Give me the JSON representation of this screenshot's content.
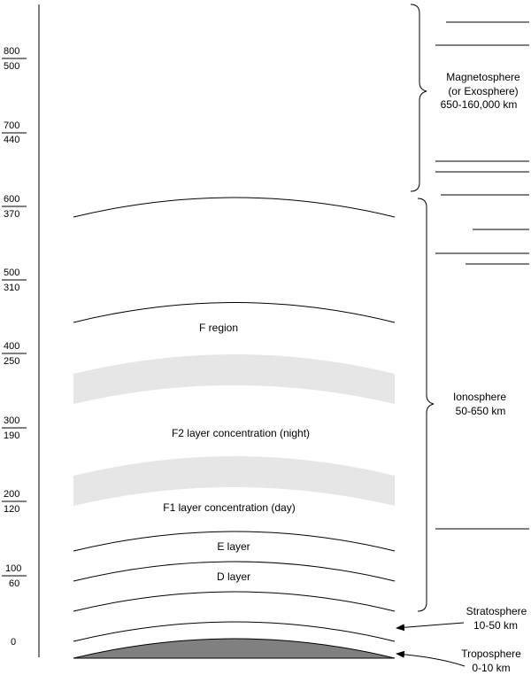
{
  "colors": {
    "line": "#000000",
    "band": "#e6e6e6",
    "troposphere_fill": "#808080"
  },
  "axis_ticks": [
    {
      "top": "800",
      "bottom": "500"
    },
    {
      "top": "700",
      "bottom": "440"
    },
    {
      "top": "600",
      "bottom": "370"
    },
    {
      "top": "500",
      "bottom": "310"
    },
    {
      "top": "400",
      "bottom": "250"
    },
    {
      "top": "300",
      "bottom": "190"
    },
    {
      "top": "200",
      "bottom": "120"
    },
    {
      "top": "100",
      "bottom": "60"
    },
    {
      "top": "0",
      "bottom": ""
    }
  ],
  "region_labels": {
    "f_region": "F region",
    "f2": "F2  layer concentration (night)",
    "f1": "F1  layer concentration (day)",
    "e_layer": "E layer",
    "d_layer": "D layer"
  },
  "side_labels": {
    "magnetosphere": [
      "Magnetosphere",
      "(or Exosphere)",
      "650-160,000 km"
    ],
    "ionosphere": [
      "Ionosphere",
      "50-650 km"
    ],
    "stratosphere": [
      "Stratosphere",
      "10-50 km"
    ],
    "troposphere": [
      "Troposphere",
      "0-10 km"
    ]
  }
}
